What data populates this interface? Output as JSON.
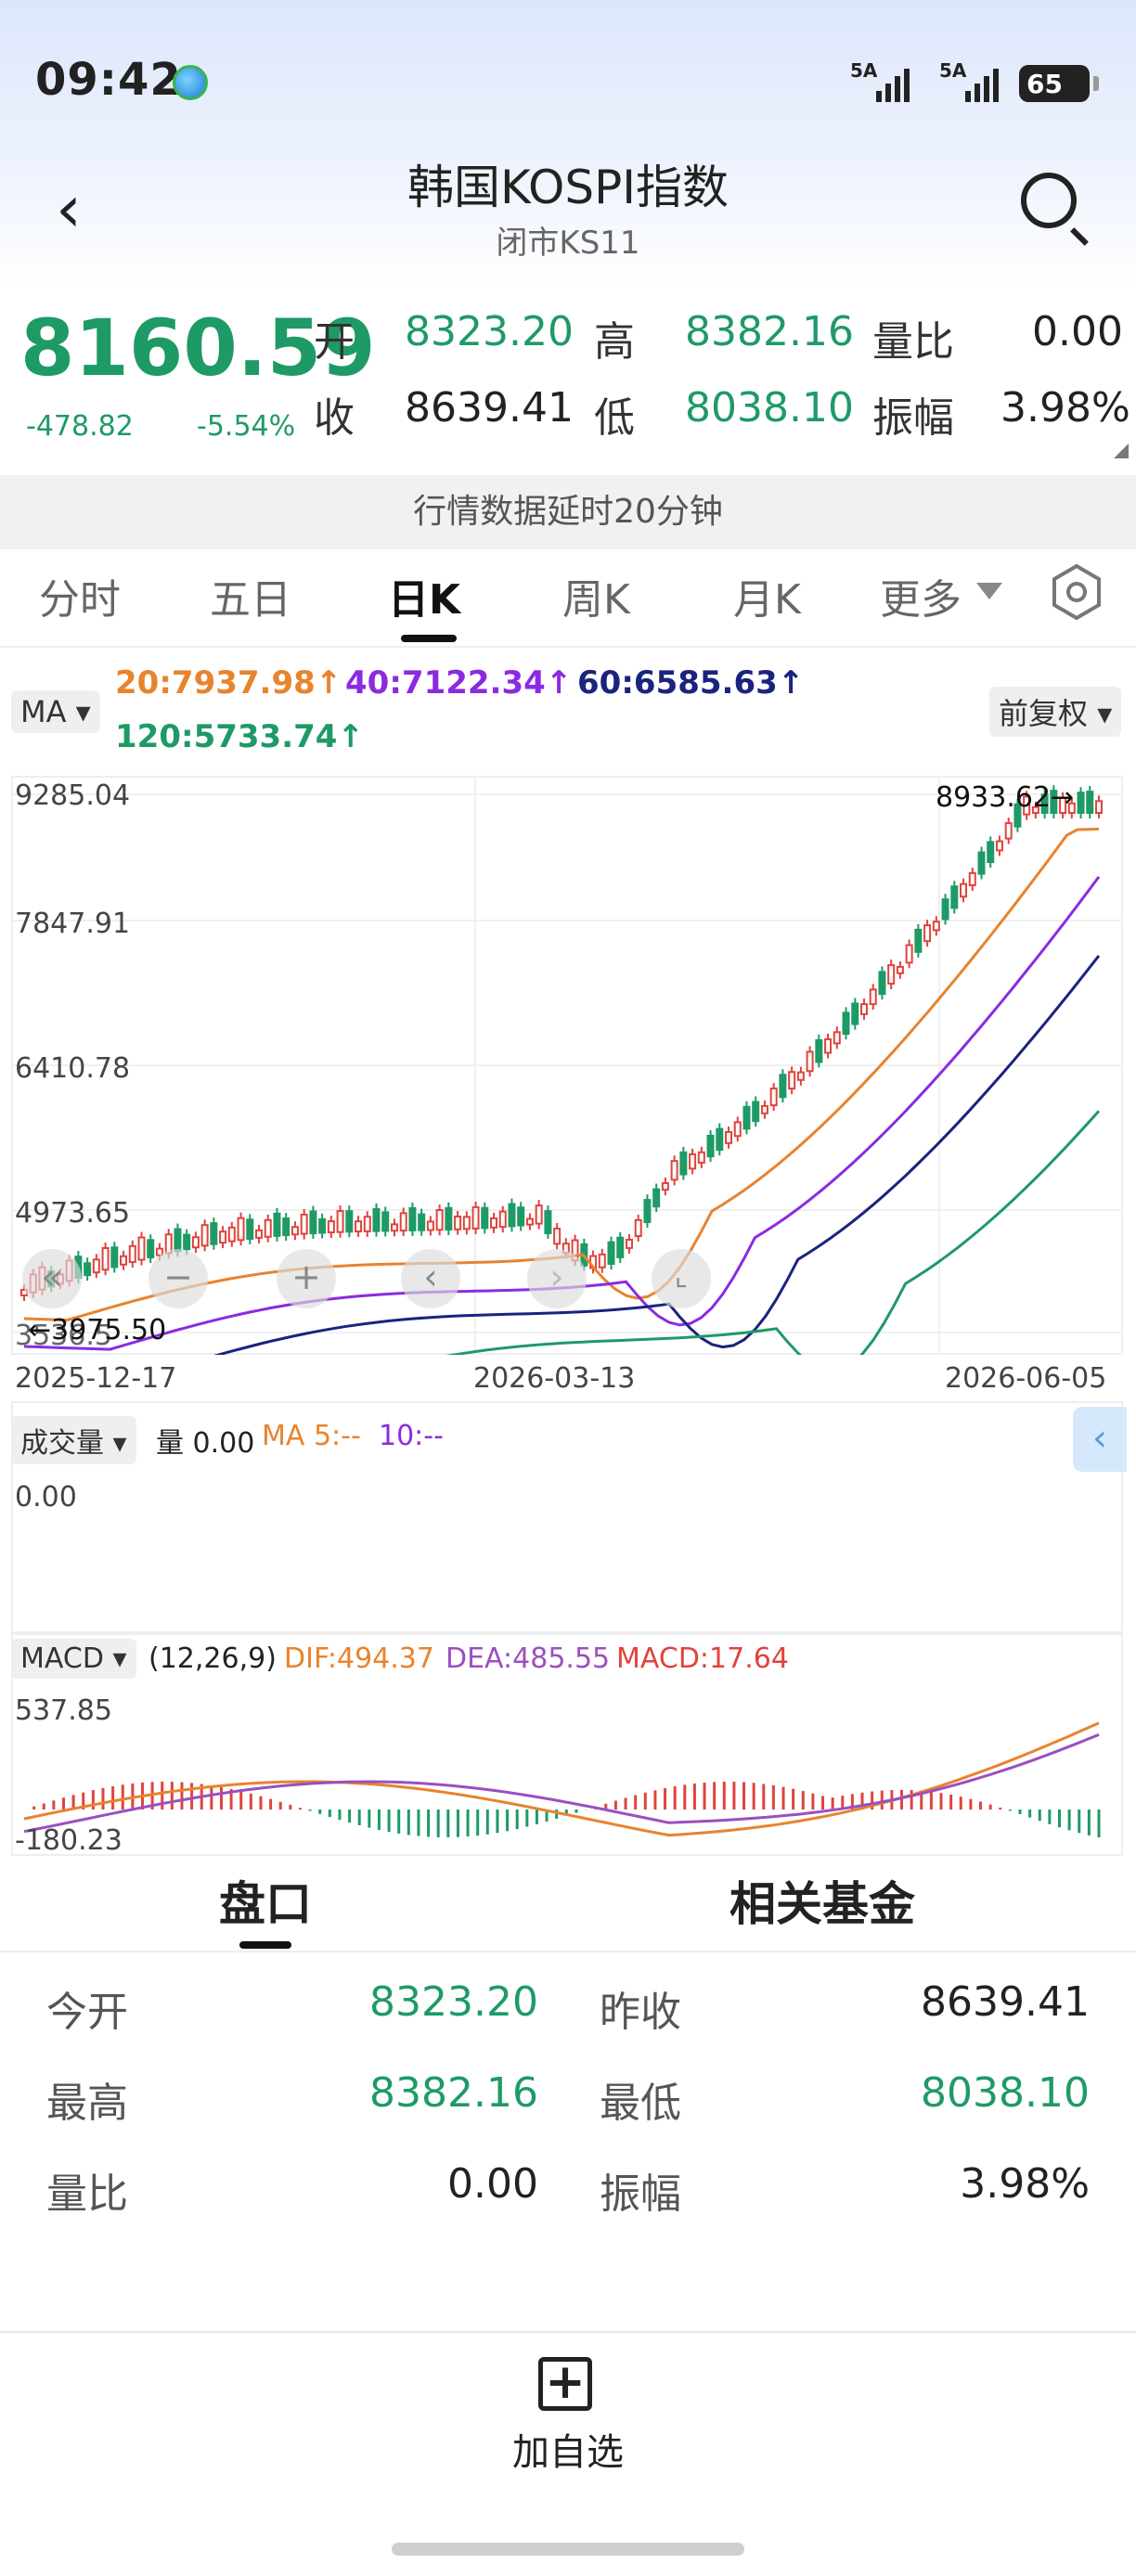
{
  "status_bar": {
    "time": "09:42",
    "signal1": "5A",
    "signal2": "5A",
    "battery": "65"
  },
  "header": {
    "title": "韩国KOSPI指数",
    "subtitle": "闭市KS11"
  },
  "quote": {
    "price": "8160.59",
    "change": "-478.82",
    "change_pct": "-5.54%",
    "open_label": "开",
    "open": "8323.20",
    "high_label": "高",
    "high": "8382.16",
    "vol_ratio_label": "量比",
    "vol_ratio": "0.00",
    "close_label": "收",
    "prev_close": "8639.41",
    "low_label": "低",
    "low": "8038.10",
    "amplitude_label": "振幅",
    "amplitude": "3.98%"
  },
  "delay_notice": "行情数据延时20分钟",
  "tabs": [
    "分时",
    "五日",
    "日K",
    "周K",
    "月K",
    "更多"
  ],
  "ma_row": {
    "ma_button": "MA",
    "ma20": "20:7937.98↑",
    "ma40": "40:7122.34↑",
    "ma60": "60:6585.63↑",
    "ma120": "120:5733.74↑",
    "adjust": "前复权"
  },
  "kline": {
    "y_labels": [
      "9285.04",
      "7847.91",
      "6410.78",
      "4973.65"
    ],
    "y_bottom": "3536.5",
    "max_marker": "8933.62→",
    "min_marker": "←3975.50",
    "x_labels": [
      "2025-12-17",
      "2026-03-13",
      "2026-06-05"
    ]
  },
  "volume": {
    "button": "成交量",
    "vol_text": "量 0.00",
    "ma5": "MA 5:--",
    "ma10": "10:--",
    "y_label": "0.00"
  },
  "macd": {
    "button": "MACD",
    "params": "(12,26,9)",
    "dif": "DIF:494.37",
    "dea": "DEA:485.55",
    "macd": "MACD:17.64",
    "y_top": "537.85",
    "y_bottom": "-180.23"
  },
  "bottom_tabs": [
    "盘口",
    "相关基金"
  ],
  "details": [
    {
      "label": "今开",
      "value": "8323.20",
      "label2": "昨收",
      "value2": "8639.41"
    },
    {
      "label": "最高",
      "value": "8382.16",
      "label2": "最低",
      "value2": "8038.10"
    },
    {
      "label": "量比",
      "value": "0.00",
      "label2": "振幅",
      "value2": "3.98%"
    }
  ],
  "add_watchlist": "加自选",
  "colors": {
    "up": "#e0433d",
    "down": "#1e9a66",
    "ma20": "#e8832e",
    "ma40": "#8a2be2",
    "ma60": "#1a237e",
    "ma120": "#1e9a66"
  }
}
